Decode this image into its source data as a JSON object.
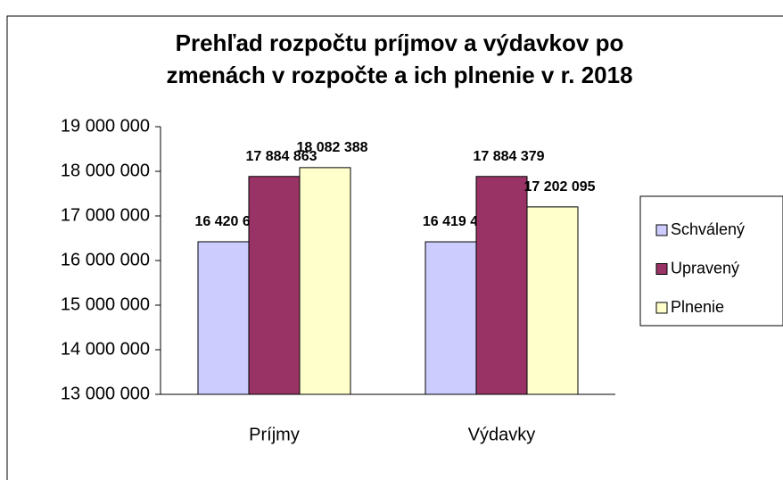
{
  "chart_data": {
    "type": "bar",
    "title": [
      "Prehľad  rozpočtu príjmov a výdavkov po",
      "zmenách v rozpočte a ich plnenie v r. 2018"
    ],
    "categories": [
      "Príjmy",
      "Výdavky"
    ],
    "series": [
      {
        "name": "Schválený",
        "color": "#ccccff",
        "values": [
          16420684,
          16419411
        ],
        "value_labels": [
          "16 420 684",
          "16 419 411"
        ]
      },
      {
        "name": "Upravený",
        "color": "#993366",
        "values": [
          17884863,
          17884379
        ],
        "value_labels": [
          "17 884 863",
          "17 884 379"
        ]
      },
      {
        "name": "Plnenie",
        "color": "#ffffcc",
        "values": [
          18082388,
          17202095
        ],
        "value_labels": [
          "18 082 388",
          "17 202 095"
        ]
      }
    ],
    "ylim": [
      13000000,
      19000000
    ],
    "yticks": [
      {
        "value": 13000000,
        "label": "13 000 000"
      },
      {
        "value": 14000000,
        "label": "14 000 000"
      },
      {
        "value": 15000000,
        "label": "15 000 000"
      },
      {
        "value": 16000000,
        "label": "16 000 000"
      },
      {
        "value": 17000000,
        "label": "17 000 000"
      },
      {
        "value": 18000000,
        "label": "18 000 000"
      },
      {
        "value": 19000000,
        "label": "19 000 000"
      }
    ],
    "legend": "right"
  }
}
